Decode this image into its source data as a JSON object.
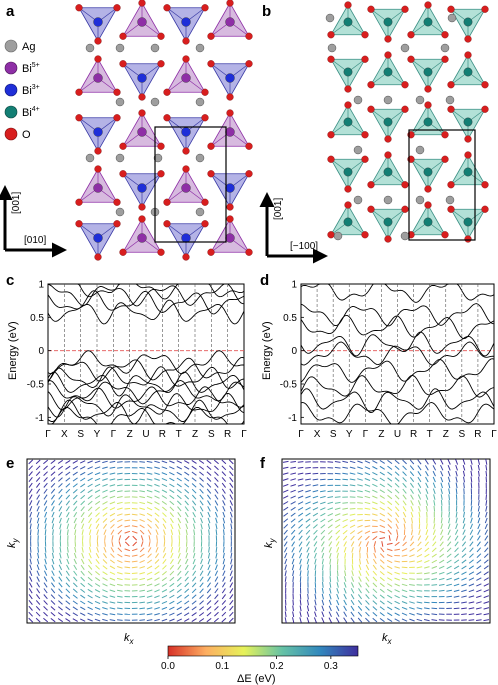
{
  "figure": {
    "panels": [
      {
        "label": "a"
      },
      {
        "label": "b"
      },
      {
        "label": "c"
      },
      {
        "label": "d"
      },
      {
        "label": "e"
      },
      {
        "label": "f"
      }
    ],
    "legend": [
      {
        "label": "Ag",
        "sup": "",
        "color": "#9e9e9e"
      },
      {
        "label": "Bi",
        "sup": "5+",
        "color": "#8e2fa6"
      },
      {
        "label": "Bi",
        "sup": "3+",
        "color": "#1f2fd8"
      },
      {
        "label": "Bi",
        "sup": "4+",
        "color": "#137f74"
      },
      {
        "label": "O",
        "sup": "",
        "color": "#d81e1e"
      }
    ],
    "axes_a": {
      "vertical": "[001]",
      "horizontal": "[010]"
    },
    "axes_b": {
      "vertical": "[001]",
      "horizontal": "[−100]"
    }
  },
  "colors": {
    "bi5_poly": "#c9a3d4",
    "bi3_poly": "#9b99dd",
    "bi4_poly": "#9ad7c9",
    "fermi": "#e35353"
  },
  "chart_data": [
    {
      "panel": "c",
      "type": "line",
      "ylabel": "Energy (eV)",
      "ylim": [
        -1.1,
        1.0
      ],
      "yticks": [
        "1",
        "0.5",
        "0",
        "-0.5",
        "-1"
      ],
      "kpoints": [
        "Γ",
        "X",
        "S",
        "Y",
        "Γ",
        "Z",
        "U",
        "R",
        "T",
        "Z",
        "S",
        "R",
        "Γ"
      ],
      "band_offsets": [
        0.95,
        0.85,
        0.72,
        0.58,
        -0.18,
        -0.28,
        -0.42,
        -0.5,
        -0.62,
        -0.72,
        -0.82,
        -0.92,
        -1.02
      ],
      "fermi_level": 0
    },
    {
      "panel": "d",
      "type": "line",
      "ylabel": "Energy (eV)",
      "ylim": [
        -1.1,
        1.0
      ],
      "yticks": [
        "1",
        "0.5",
        "0",
        "-0.5",
        "-1"
      ],
      "kpoints": [
        "Γ",
        "X",
        "S",
        "Y",
        "Γ",
        "Z",
        "U",
        "R",
        "T",
        "Z",
        "S",
        "R",
        "Γ"
      ],
      "band_offsets": [
        0.9,
        0.55,
        0.35,
        0.1,
        -0.05,
        -0.3,
        -0.55,
        -0.75,
        -0.95
      ],
      "fermi_level": 0
    },
    {
      "panel": "e",
      "type": "heatmap",
      "xlabel": "k",
      "xlabel_sub": "x",
      "ylabel": "k",
      "ylabel_sub": "y",
      "grid": 28
    },
    {
      "panel": "f",
      "type": "heatmap",
      "xlabel": "k",
      "xlabel_sub": "x",
      "ylabel": "k",
      "ylabel_sub": "y",
      "grid": 28
    },
    {
      "type": "colorbar",
      "label": "ΔE (eV)",
      "ticks": [
        "0.0",
        "0.1",
        "0.2",
        "0.3"
      ],
      "range": [
        0,
        0.35
      ],
      "colormap": [
        "#d73027",
        "#fdae61",
        "#e6f25a",
        "#66c2a5",
        "#3288bd",
        "#3f2f9e"
      ]
    }
  ]
}
